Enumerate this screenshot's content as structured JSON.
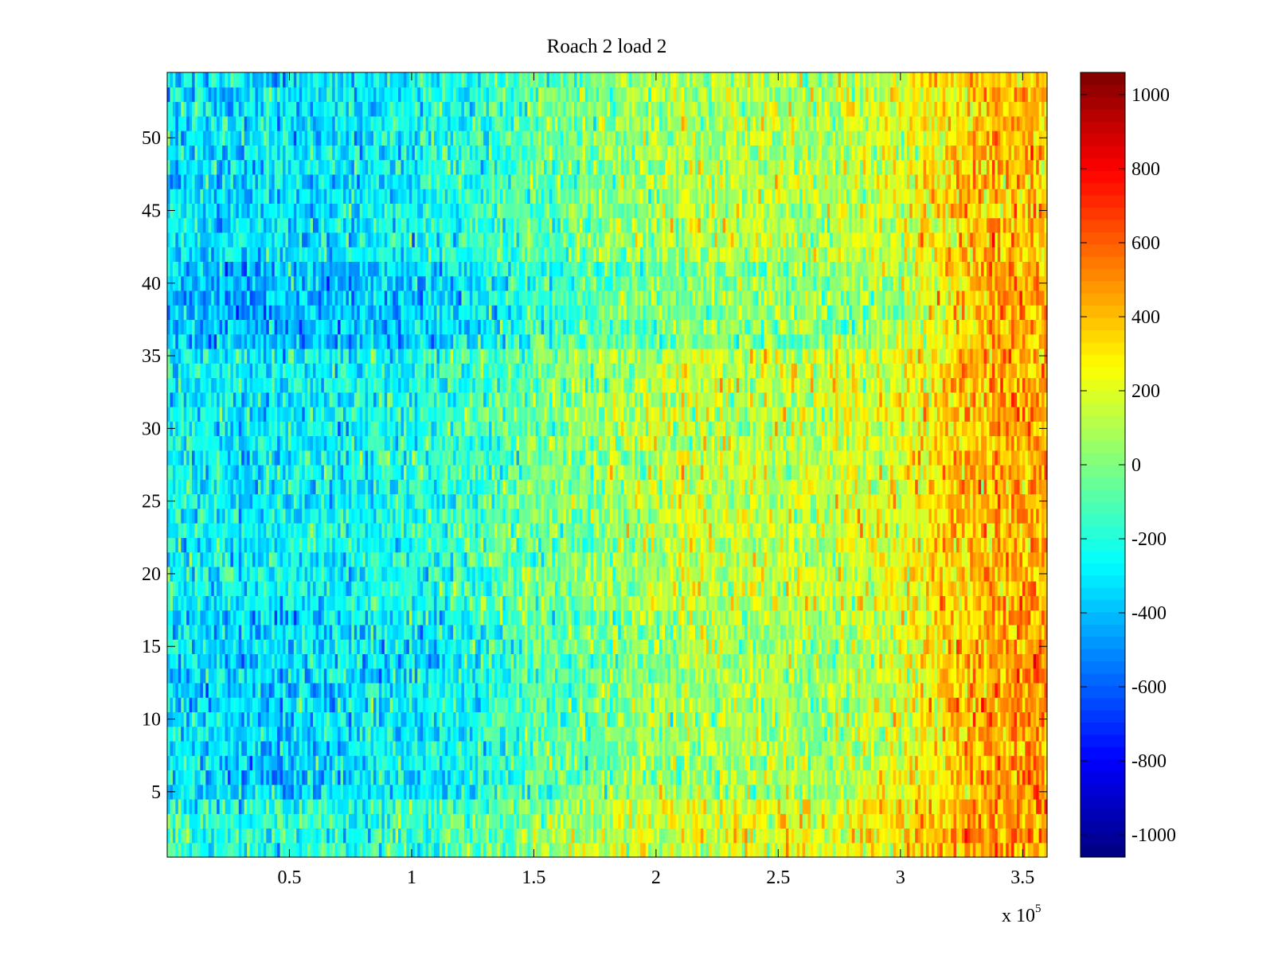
{
  "chart_data": {
    "type": "heatmap",
    "title": "Roach 2 load 2",
    "xlabel": "",
    "ylabel": "",
    "colormap": "jet",
    "xlim": [
      0,
      360000
    ],
    "ylim": [
      0.5,
      54.5
    ],
    "clim": [
      -1060,
      1060
    ],
    "grid": false,
    "x_ticks": [
      50000,
      100000,
      150000,
      200000,
      250000,
      300000,
      350000
    ],
    "x_tick_labels": [
      "0.5",
      "1",
      "1.5",
      "2",
      "2.5",
      "3",
      "3.5"
    ],
    "x_exponent_label": "x 10",
    "x_exponent_power": "5",
    "y_ticks": [
      5,
      10,
      15,
      20,
      25,
      30,
      35,
      40,
      45,
      50
    ],
    "y_tick_labels": [
      "5",
      "10",
      "15",
      "20",
      "25",
      "30",
      "35",
      "40",
      "45",
      "50"
    ],
    "colorbar_ticks": [
      1000,
      800,
      600,
      400,
      200,
      0,
      -200,
      -400,
      -600,
      -800,
      -1000
    ],
    "colorbar_tick_labels": [
      "1000",
      "800",
      "600",
      "400",
      "200",
      "0",
      "-200",
      "-400",
      "-600",
      "-800",
      "-1000"
    ],
    "rows": 54,
    "row_centers": [
      1,
      2,
      3,
      4,
      5,
      6,
      7,
      8,
      9,
      10,
      11,
      12,
      13,
      14,
      15,
      16,
      17,
      18,
      19,
      20,
      21,
      22,
      23,
      24,
      25,
      26,
      27,
      28,
      29,
      30,
      31,
      32,
      33,
      34,
      35,
      36,
      37,
      38,
      39,
      40,
      41,
      42,
      43,
      44,
      45,
      46,
      47,
      48,
      49,
      50,
      51,
      52,
      53,
      54
    ],
    "x_profile_x": [
      0,
      30000,
      60000,
      90000,
      120000,
      150000,
      180000,
      210000,
      240000,
      270000,
      300000,
      330000,
      360000
    ],
    "x_profile_mean": [
      -230,
      -290,
      -260,
      -230,
      -160,
      -40,
      60,
      140,
      160,
      140,
      230,
      420,
      450
    ],
    "row_bands": [
      {
        "rows_from": 1,
        "rows_to": 4,
        "offset": 60
      },
      {
        "rows_from": 5,
        "rows_to": 17,
        "offset": -70,
        "high_x_boost": 120
      },
      {
        "rows_from": 18,
        "rows_to": 35,
        "offset": 0
      },
      {
        "rows_from": 36,
        "rows_to": 41,
        "offset": -140,
        "high_x_boost": 170
      },
      {
        "rows_from": 42,
        "rows_to": 54,
        "offset": -40
      }
    ],
    "noise_std": 140
  }
}
